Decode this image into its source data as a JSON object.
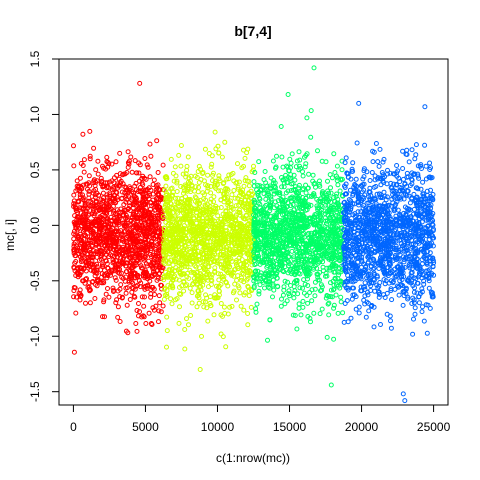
{
  "chart_data": {
    "type": "scatter",
    "title": "b[7,4]",
    "xlabel": "c(1:nrow(mc))",
    "ylabel": "mc[, i]",
    "xlim": [
      -1000,
      26000
    ],
    "ylim": [
      -1.62,
      1.5
    ],
    "x_ticks": [
      0,
      5000,
      10000,
      15000,
      20000,
      25000
    ],
    "x_tick_labels": [
      "0",
      "5000",
      "10000",
      "15000",
      "20000",
      "25000"
    ],
    "y_ticks": [
      -1.5,
      -1.0,
      -0.5,
      0.0,
      0.5,
      1.0,
      1.5
    ],
    "y_tick_labels": [
      "-1.5",
      "-1.0",
      "-0.5",
      "0.0",
      "0.5",
      "1.0",
      "1.5"
    ],
    "grid": false,
    "marker": "open-circle",
    "series": [
      {
        "x_range": [
          1,
          6250
        ],
        "color": "#ff0000",
        "center": -0.1,
        "spread": 0.3
      },
      {
        "x_range": [
          6251,
          12500
        ],
        "color": "#ccff00",
        "center": -0.1,
        "spread": 0.3
      },
      {
        "x_range": [
          12501,
          18750
        ],
        "color": "#00ff66",
        "center": -0.1,
        "spread": 0.3
      },
      {
        "x_range": [
          18751,
          25000
        ],
        "color": "#0066ff",
        "center": -0.1,
        "spread": 0.3
      }
    ],
    "outliers": [
      {
        "x": 4600,
        "y": 1.28
      },
      {
        "x": 16700,
        "y": 1.42
      },
      {
        "x": 14900,
        "y": 1.18
      },
      {
        "x": 22900,
        "y": -1.52
      },
      {
        "x": 23000,
        "y": -1.58
      },
      {
        "x": 17900,
        "y": -1.44
      },
      {
        "x": 8800,
        "y": -1.3
      },
      {
        "x": 24400,
        "y": 1.07
      },
      {
        "x": 19800,
        "y": 1.1
      }
    ]
  }
}
